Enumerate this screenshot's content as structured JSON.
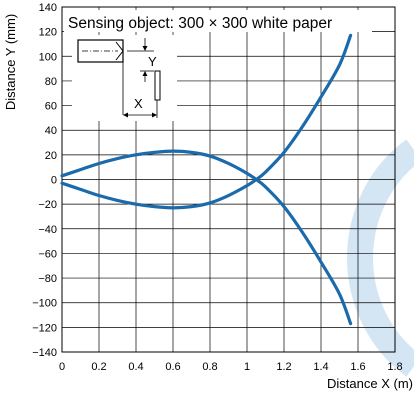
{
  "chart_data": {
    "type": "line",
    "title": "Sensing object: 300 × 300 white paper",
    "xlabel": "Distance X (m)",
    "ylabel": "Distance Y (mm)",
    "xlim": [
      0,
      1.8
    ],
    "ylim": [
      -140,
      140
    ],
    "x_ticks": [
      0,
      0.2,
      0.4,
      0.6,
      0.8,
      1,
      1.2,
      1.4,
      1.6,
      1.8
    ],
    "x_tick_labels": [
      "0",
      "0.2",
      "0.4",
      "0.6",
      "0.8",
      "1",
      "1.2",
      "1.4",
      "1.6",
      "1.8"
    ],
    "y_ticks": [
      140,
      120,
      100,
      80,
      60,
      40,
      20,
      0,
      -20,
      -40,
      -60,
      -80,
      -100,
      -120,
      -140
    ],
    "y_tick_labels": [
      "140",
      "120",
      "100",
      "80",
      "60",
      "40",
      "20",
      "0",
      "−20",
      "−40",
      "−60",
      "−80",
      "−100",
      "−120",
      "−140"
    ],
    "grid": true,
    "line_color": "#1a6aac",
    "watermark_color": "#d4e6f4",
    "series": [
      {
        "x": [
          0.0,
          0.1,
          0.2,
          0.3,
          0.4,
          0.5,
          0.6,
          0.7,
          0.8,
          0.9,
          1.0,
          1.05,
          1.1,
          1.2,
          1.3,
          1.4,
          1.5,
          1.56
        ],
        "y": [
          3,
          8,
          13,
          17,
          20,
          22,
          23,
          22,
          19,
          13,
          5,
          0,
          -6,
          -22,
          -43,
          -67,
          -93,
          -117
        ]
      },
      {
        "x": [
          0.0,
          0.1,
          0.2,
          0.3,
          0.4,
          0.5,
          0.6,
          0.7,
          0.8,
          0.9,
          1.0,
          1.05,
          1.1,
          1.2,
          1.3,
          1.4,
          1.5,
          1.56
        ],
        "y": [
          -3,
          -8,
          -13,
          -17,
          -20,
          -22,
          -23,
          -22,
          -19,
          -13,
          -5,
          0,
          6,
          22,
          43,
          67,
          93,
          117
        ]
      }
    ],
    "diagram": {
      "y_label": "Y",
      "x_label": "X"
    }
  }
}
